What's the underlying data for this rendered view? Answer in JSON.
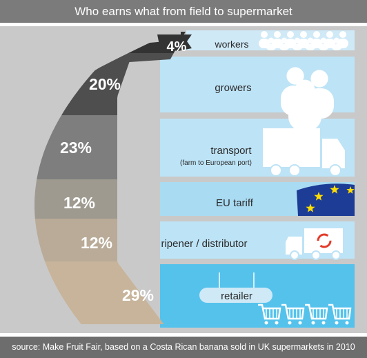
{
  "title": "Who earns what from field to supermarket",
  "source": "source: Make Fruit Fair, based on a Costa Rican banana sold in UK supermarkets in 2010",
  "colors": {
    "background": "#ffffff",
    "grey_panel": "#c9c9c9",
    "blue_light": "#cfe9f7",
    "blue_mid": "#a9dbf3",
    "blue_strong": "#55c2ec",
    "eu_flag": "#1c3c96",
    "eu_star": "#ffdd00"
  },
  "chart_data": {
    "type": "bar",
    "title": "Who earns what from field to supermarket",
    "unit": "%",
    "categories": [
      "workers",
      "growers",
      "transport",
      "EU tariff",
      "ripener / distributor",
      "retailer"
    ],
    "values": [
      4,
      20,
      23,
      12,
      12,
      29
    ],
    "value_labels": [
      "4%",
      "20%",
      "23%",
      "12%",
      "12%",
      "29%"
    ],
    "sublabels": [
      "",
      "",
      "(farm to European port)",
      "",
      "",
      ""
    ],
    "segment_colors": [
      "#333333",
      "#4e4e4e",
      "#7e7e7e",
      "#9e9a90",
      "#b9ab97",
      "#c7b49b"
    ],
    "panel_colors": [
      "#cfe9f7",
      "#bde3f6",
      "#bde3f6",
      "#a9dbf3",
      "#bde3f6",
      "#55c2ec"
    ],
    "icons": [
      "people-crowd-icon",
      "people-group-icon",
      "truck-icon",
      "eu-flag-icon",
      "ripening-truck-icon",
      "shopping-carts-icon"
    ],
    "source": "source: Make Fruit Fair, based on a Costa Rican banana sold in UK supermarkets in 2010"
  }
}
